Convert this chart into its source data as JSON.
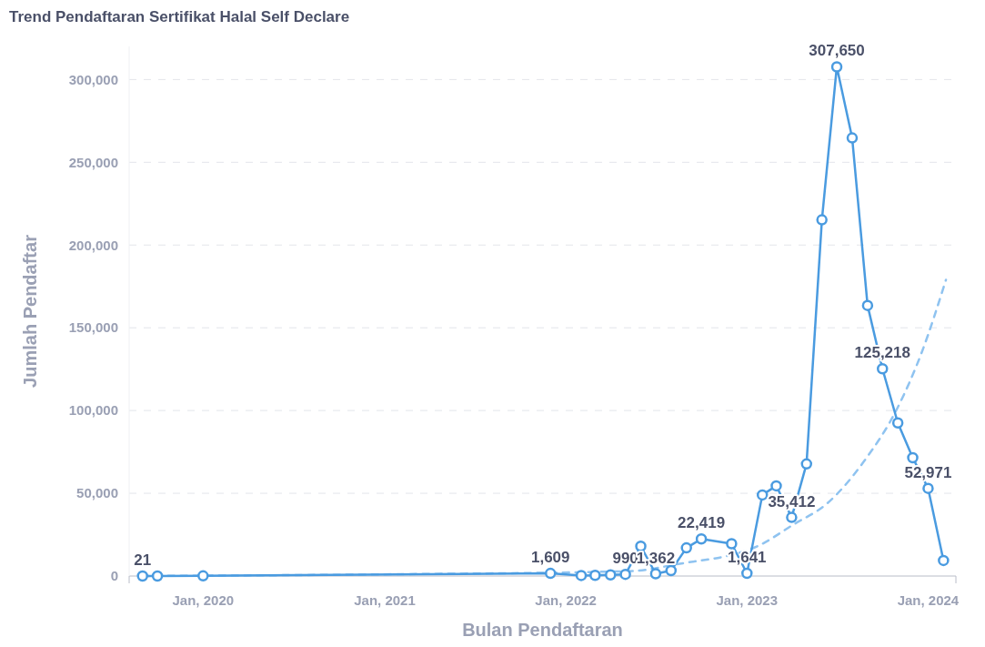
{
  "chart_data": {
    "type": "line",
    "title": "Trend Pendaftaran Sertifikat Halal Self Declare",
    "xlabel": "Bulan Pendaftaran",
    "ylabel": "Jumlah Pendaftar",
    "series": [
      {
        "color": "#4a9be0",
        "marker": "circle",
        "line_style": "solid",
        "x": [
          "2019-09",
          "2019-10",
          "2020-01",
          "2021-12",
          "2022-02",
          "2022-03",
          "2022-04",
          "2022-05",
          "2022-06",
          "2022-07",
          "2022-08",
          "2022-09",
          "2022-10",
          "2022-11",
          "2022-12",
          "2023-01",
          "2023-02",
          "2023-03",
          "2023-04",
          "2023-05",
          "2023-06",
          "2023-07",
          "2023-08",
          "2023-09",
          "2023-10",
          "2023-11",
          "2023-12",
          "2024-01",
          "2024-02"
        ],
        "values": [
          21,
          0,
          100,
          1609,
          300,
          400,
          700,
          990,
          18000,
          1362,
          3300,
          17000,
          22419,
          null,
          19500,
          1641,
          49000,
          54500,
          35412,
          67700,
          215200,
          307650,
          264700,
          163500,
          125218,
          92500,
          71500,
          52971,
          9400
        ],
        "value_labels": [
          "21",
          null,
          null,
          "1,609",
          null,
          null,
          null,
          "990",
          null,
          "1,362",
          null,
          null,
          "22,419",
          null,
          null,
          "1,641",
          null,
          null,
          "35,412",
          null,
          null,
          "307,650",
          null,
          null,
          "125,218",
          null,
          null,
          "52,971",
          null
        ]
      },
      {
        "color": "#8fc3f0",
        "marker": "none",
        "line_style": "dashed",
        "x": [
          "2019-09-01",
          "2021-01-01",
          "2022-05-15",
          "2022-08-10",
          "2023-01-22",
          "2023-04-04",
          "2023-06-12",
          "2023-08-24",
          "2023-11-01",
          "2023-12-19",
          "2024-02-06"
        ],
        "values": [
          0,
          1000,
          3000,
          7000,
          18000,
          31000,
          44000,
          69000,
          102000,
          135000,
          179000
        ]
      }
    ],
    "xlim": [
      "2019-08-05",
      "2024-02-26"
    ],
    "xticks": [
      {
        "value": "2020-01",
        "label": "Jan, 2020"
      },
      {
        "value": "2021-01",
        "label": "Jan, 2021"
      },
      {
        "value": "2022-01",
        "label": "Jan, 2022"
      },
      {
        "value": "2023-01",
        "label": "Jan, 2023"
      },
      {
        "value": "2024-01",
        "label": "Jan, 2024"
      }
    ],
    "ylim": [
      0,
      320000
    ],
    "yticks": [
      {
        "value": 0,
        "label": "0"
      },
      {
        "value": 50000,
        "label": "50,000"
      },
      {
        "value": 100000,
        "label": "100,000"
      },
      {
        "value": 150000,
        "label": "150,000"
      },
      {
        "value": 200000,
        "label": "200,000"
      },
      {
        "value": 250000,
        "label": "250,000"
      },
      {
        "value": 300000,
        "label": "300,000"
      }
    ],
    "grid": "y"
  }
}
